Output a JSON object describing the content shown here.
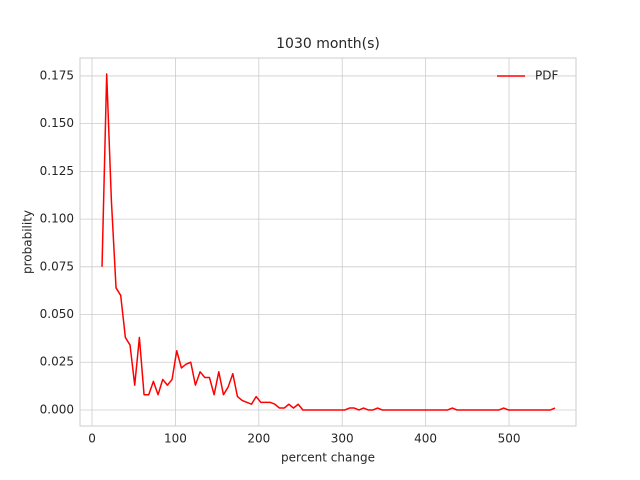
{
  "chart_data": {
    "type": "line",
    "title": "1030 month(s)",
    "x_label": "percent change",
    "y_label": "probability",
    "x": [
      12,
      17.6,
      23.2,
      28.8,
      34.4,
      40,
      45.6,
      51.2,
      56.8,
      62.4,
      68,
      73.6,
      79.2,
      84.8,
      90.4,
      96,
      101.6,
      107.2,
      112.8,
      118.4,
      124,
      129.6,
      135.2,
      140.8,
      146.4,
      152,
      157.6,
      163.2,
      168.8,
      174.4,
      180,
      185.6,
      191.2,
      196.8,
      202.4,
      208,
      213.6,
      219.2,
      224.8,
      230.4,
      236,
      241.6,
      247.2,
      252.8,
      258.4,
      264,
      269.6,
      275.2,
      280.8,
      286.4,
      292,
      297.6,
      303.2,
      308.8,
      314.4,
      320,
      325.6,
      331.2,
      336.8,
      342.4,
      348,
      353.6,
      359.2,
      364.8,
      370.4,
      376,
      381.6,
      387.2,
      392.8,
      398.4,
      404,
      409.6,
      415.2,
      420.8,
      426.4,
      432,
      437.6,
      443.2,
      448.8,
      454.4,
      460,
      465.6,
      471.2,
      476.8,
      482.4,
      488,
      493.6,
      499.2,
      504.8,
      510.4,
      516,
      521.6,
      527.2,
      532.8,
      538.4,
      544,
      549.6,
      555.2
    ],
    "series": [
      {
        "name": "PDF",
        "color": "#ff0000",
        "values": [
          0.075,
          0.176,
          0.11,
          0.064,
          0.06,
          0.038,
          0.034,
          0.013,
          0.038,
          0.008,
          0.008,
          0.015,
          0.008,
          0.016,
          0.013,
          0.016,
          0.031,
          0.022,
          0.024,
          0.025,
          0.013,
          0.02,
          0.017,
          0.017,
          0.008,
          0.02,
          0.008,
          0.012,
          0.019,
          0.007,
          0.005,
          0.004,
          0.003,
          0.007,
          0.004,
          0.004,
          0.004,
          0.003,
          0.001,
          0.001,
          0.003,
          0.001,
          0.003,
          0,
          0,
          0,
          0,
          0,
          0,
          0,
          0,
          0,
          0,
          0.001,
          0.001,
          0,
          0.001,
          0,
          0,
          0.001,
          0,
          0,
          0,
          0,
          0,
          0,
          0,
          0,
          0,
          0,
          0,
          0,
          0,
          0,
          0,
          0.001,
          0,
          0,
          0,
          0,
          0,
          0,
          0,
          0,
          0,
          0,
          0.001,
          0,
          0,
          0,
          0,
          0,
          0,
          0,
          0,
          0,
          0,
          0.001
        ]
      }
    ],
    "xlim": [
      -14.4,
      580.3
    ],
    "ylim": [
      -0.0084,
      0.1844
    ],
    "xticks": [
      0,
      100,
      200,
      300,
      400,
      500
    ],
    "yticks": [
      {
        "value": 0,
        "label": "0.000"
      },
      0.025,
      {
        "value": 0.05,
        "label": "0.050"
      },
      0.075,
      {
        "value": 0.1,
        "label": "0.100"
      },
      0.125,
      {
        "value": 0.15,
        "label": "0.150"
      },
      0.175
    ],
    "grid": true,
    "legend": "upper right"
  }
}
